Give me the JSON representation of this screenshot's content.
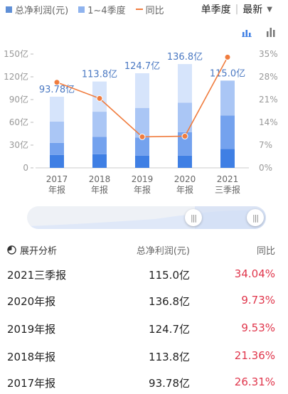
{
  "legend": {
    "items": [
      {
        "label": "总净利润(元)",
        "color": "#5f8fd6",
        "shape": "square"
      },
      {
        "label": "1~4季度",
        "color": "#8fb3ee",
        "shape": "square"
      },
      {
        "label": "同比",
        "color": "#f07c3e",
        "shape": "line"
      }
    ],
    "period_label": "单季度",
    "sort_label": "最新"
  },
  "view_icons": [
    "bar-stacked-view-icon",
    "bar-chart-view-icon"
  ],
  "chart_data": {
    "type": "bar",
    "categories": [
      [
        "2017",
        "年报"
      ],
      [
        "2018",
        "年报"
      ],
      [
        "2019",
        "年报"
      ],
      [
        "2020",
        "年报"
      ],
      [
        "2021",
        "三季报"
      ]
    ],
    "series": [
      {
        "name": "总净利润(元)",
        "type": "bar",
        "values": [
          93.78,
          113.8,
          124.7,
          136.8,
          115.0
        ]
      },
      {
        "name": "同比",
        "type": "line",
        "values": [
          26.31,
          21.36,
          9.53,
          9.73,
          34.04
        ]
      }
    ],
    "quarter_stacks": [
      [
        17,
        16,
        28,
        32.78
      ],
      [
        18,
        23,
        33,
        39.8
      ],
      [
        16,
        24,
        39,
        45.7
      ],
      [
        16,
        31,
        39,
        50.8
      ],
      [
        25,
        44,
        46
      ]
    ],
    "bar_labels": [
      "93.78亿",
      "113.8亿",
      "124.7亿",
      "136.8亿",
      "115.0亿"
    ],
    "left_ticks": [
      "150亿",
      "120亿",
      "90亿",
      "60亿",
      "30亿",
      "0"
    ],
    "right_ticks": [
      "35%",
      "28%",
      "21%",
      "14%",
      "7%",
      "0%"
    ],
    "ylim_left": [
      0,
      150
    ],
    "ylim_right": [
      0,
      35
    ],
    "colors": {
      "quarter": [
        "#3f7fe4",
        "#74a2ee",
        "#aac6f5",
        "#d6e4fb"
      ],
      "line": "#f07c3e",
      "label": "#4a78c2",
      "axis": "#999999"
    }
  },
  "table": {
    "expand_label": "展开分析",
    "col2_header": "总净利润(元)",
    "col3_header": "同比",
    "rows": [
      {
        "period": "2021三季报",
        "profit": "115.0亿",
        "yoy": "34.04%"
      },
      {
        "period": "2020年报",
        "profit": "136.8亿",
        "yoy": "9.73%"
      },
      {
        "period": "2019年报",
        "profit": "124.7亿",
        "yoy": "9.53%"
      },
      {
        "period": "2018年报",
        "profit": "113.8亿",
        "yoy": "21.36%"
      },
      {
        "period": "2017年报",
        "profit": "93.78亿",
        "yoy": "26.31%"
      }
    ]
  },
  "slider": {
    "left_handle": "|||",
    "right_handle": "|||"
  }
}
